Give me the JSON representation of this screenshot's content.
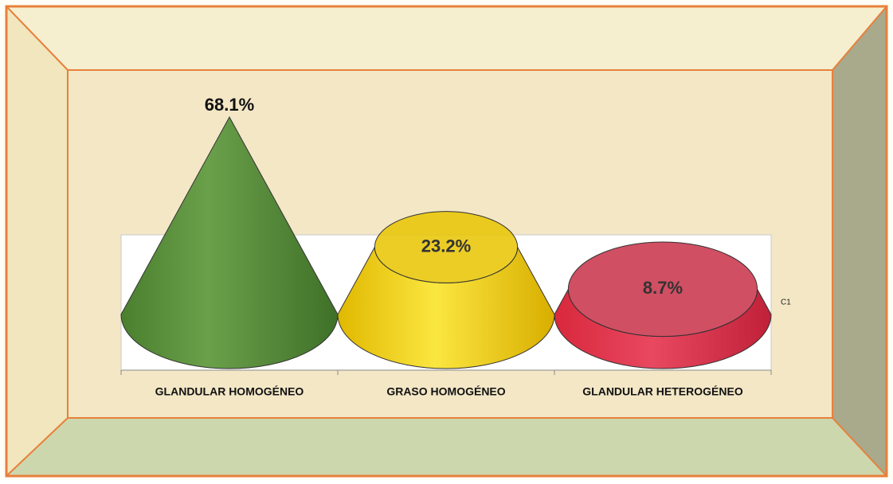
{
  "chart_data": {
    "type": "cone",
    "categories": [
      "GLANDULAR HOMOGÉNEO",
      "GRASO HOMOGÉNEO",
      "GLANDULAR HETEROGÉNEO"
    ],
    "series": [
      {
        "name": "C1",
        "values": [
          68.1,
          23.2,
          8.7
        ],
        "value_labels": [
          "68.1%",
          "23.2%",
          "8.7%"
        ],
        "colors": [
          "#5b8f3a",
          "#e8c400",
          "#c83048"
        ]
      }
    ]
  }
}
